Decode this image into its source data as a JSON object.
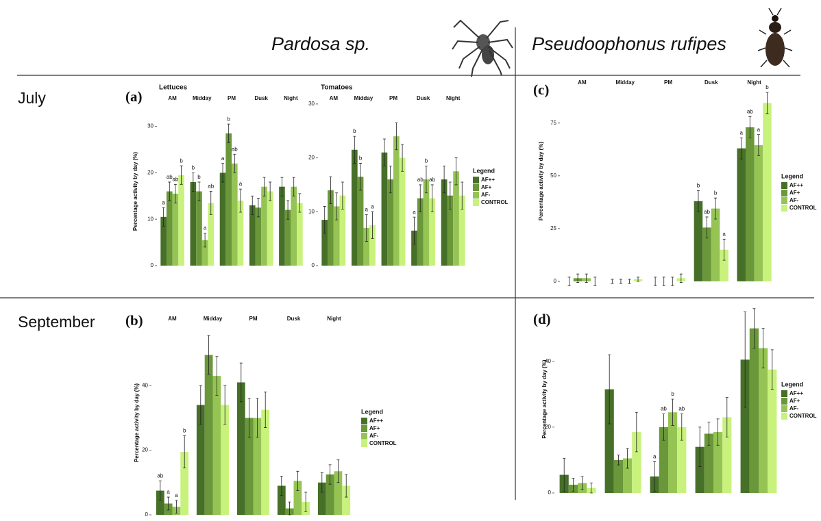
{
  "header": {
    "left_title": "Pardosa sp.",
    "right_title": "Pseudoophonus rufipes",
    "rows": [
      "July",
      "September"
    ]
  },
  "chart_data": [
    {
      "type": "bar",
      "panel": "(a)",
      "subtitle": "Lettuces",
      "ylabel": "Percentage activity by day (%)",
      "categories": [
        "AM",
        "Midday",
        "PM",
        "Dusk",
        "Night"
      ],
      "ylim": [
        0,
        32
      ],
      "yticks": [
        0,
        10,
        20,
        30
      ],
      "legend": false,
      "series": [
        {
          "name": "AF++",
          "color": "#466f28",
          "values": [
            10.5,
            18,
            20,
            13,
            17
          ],
          "errors": [
            2,
            2,
            2,
            2,
            2
          ],
          "annotations": [
            "a",
            "b",
            "a",
            null,
            null
          ]
        },
        {
          "name": "AF+",
          "color": "#6a973a",
          "values": [
            16,
            16,
            28.5,
            12.5,
            12
          ],
          "errors": [
            2,
            2,
            2,
            2,
            2
          ],
          "annotations": [
            "ab",
            "b",
            "b",
            null,
            null
          ]
        },
        {
          "name": "AF-",
          "color": "#95c455",
          "values": [
            15.5,
            5.5,
            22,
            17,
            17
          ],
          "errors": [
            2,
            1.5,
            2,
            2,
            2
          ],
          "annotations": [
            "ab",
            "a",
            "ab",
            null,
            null
          ]
        },
        {
          "name": "CONTROL",
          "color": "#c8f27c",
          "values": [
            19.5,
            13.5,
            14,
            16,
            13.5
          ],
          "errors": [
            2,
            2.5,
            2.5,
            2,
            2
          ],
          "annotations": [
            "b",
            "ab",
            "a",
            null,
            null
          ]
        }
      ]
    },
    {
      "type": "bar",
      "subtitle": "Tomatoes",
      "categories": [
        "AM",
        "Midday",
        "PM",
        "Dusk",
        "Night"
      ],
      "ylim": [
        0,
        31
      ],
      "yticks": [
        0,
        10,
        20,
        30
      ],
      "legend": true,
      "legend_title": "Legend",
      "series": [
        {
          "name": "AF++",
          "color": "#466f28",
          "values": [
            8.5,
            21.5,
            21,
            6.5,
            16
          ],
          "errors": [
            2.5,
            2.5,
            2.5,
            2.5,
            2.5
          ],
          "annotations": [
            null,
            "b",
            null,
            "a",
            null
          ]
        },
        {
          "name": "AF+",
          "color": "#6a973a",
          "values": [
            14,
            16.5,
            16,
            12.5,
            13
          ],
          "errors": [
            2.5,
            2.5,
            2.5,
            2.5,
            2.5
          ],
          "annotations": [
            null,
            "b",
            null,
            "ab",
            null
          ]
        },
        {
          "name": "AF-",
          "color": "#95c455",
          "values": [
            11,
            7,
            24,
            16,
            17.5
          ],
          "errors": [
            2.5,
            2.5,
            2.5,
            2.5,
            2.5
          ],
          "annotations": [
            null,
            "a",
            null,
            "b",
            null
          ]
        },
        {
          "name": "CONTROL",
          "color": "#c8f27c",
          "values": [
            13,
            7.5,
            20,
            12.5,
            13
          ],
          "errors": [
            2.5,
            2.5,
            2.5,
            2.5,
            2.5
          ],
          "annotations": [
            null,
            "a",
            null,
            "ab",
            null
          ]
        }
      ]
    },
    {
      "type": "bar",
      "panel": "(b)",
      "ylabel": "Percentage activity by day  (%)",
      "categories": [
        "AM",
        "Midday",
        "PM",
        "Dusk",
        "Night"
      ],
      "ylim": [
        0,
        57
      ],
      "yticks": [
        0,
        20,
        40
      ],
      "legend": true,
      "legend_title": "Legend",
      "series": [
        {
          "name": "AF++",
          "color": "#466f28",
          "values": [
            7.5,
            34,
            41,
            9,
            10
          ],
          "errors": [
            3,
            6,
            6,
            3,
            3
          ],
          "annotations": [
            "ab",
            null,
            null,
            null,
            null
          ]
        },
        {
          "name": "AF+",
          "color": "#6a973a",
          "values": [
            3.5,
            49.5,
            30,
            2,
            12.5
          ],
          "errors": [
            2,
            6,
            6,
            2,
            3
          ],
          "annotations": [
            "a",
            null,
            null,
            null,
            null
          ]
        },
        {
          "name": "AF-",
          "color": "#95c455",
          "values": [
            2.5,
            43,
            30,
            10.5,
            13.5
          ],
          "errors": [
            2,
            6,
            6,
            3,
            3.5
          ],
          "annotations": [
            "a",
            null,
            null,
            null,
            null
          ]
        },
        {
          "name": "CONTROL",
          "color": "#c8f27c",
          "values": [
            19.5,
            34,
            32.5,
            4,
            9
          ],
          "errors": [
            5,
            6,
            5.5,
            3,
            3.5
          ],
          "annotations": [
            "b",
            null,
            null,
            null,
            null
          ]
        }
      ]
    },
    {
      "type": "bar",
      "panel": "(c)",
      "ylabel": "Percentage activity by day  (%)",
      "categories": [
        "AM",
        "Midday",
        "PM",
        "Dusk",
        "Night"
      ],
      "ylim": [
        0,
        95
      ],
      "yticks": [
        0,
        25,
        50,
        75
      ],
      "legend": true,
      "legend_title": "Legend",
      "series": [
        {
          "name": "AF++",
          "color": "#466f28",
          "values": [
            0,
            0,
            0,
            38,
            63
          ],
          "errors": [
            2,
            1,
            2,
            5,
            5
          ],
          "annotations": [
            null,
            null,
            null,
            "b",
            "a"
          ]
        },
        {
          "name": "AF+",
          "color": "#6a973a",
          "values": [
            1.5,
            0,
            0,
            25.5,
            73
          ],
          "errors": [
            2,
            1,
            2,
            5,
            5
          ],
          "annotations": [
            null,
            null,
            null,
            "ab",
            "ab"
          ]
        },
        {
          "name": "AF-",
          "color": "#95c455",
          "values": [
            1.5,
            0,
            0,
            34.5,
            64.5
          ],
          "errors": [
            2,
            1,
            2,
            5,
            5
          ],
          "annotations": [
            null,
            null,
            null,
            "b",
            "a"
          ]
        },
        {
          "name": "CONTROL",
          "color": "#c8f27c",
          "values": [
            0,
            1,
            1.5,
            15,
            84.5
          ],
          "errors": [
            2,
            1,
            2,
            5,
            5
          ],
          "annotations": [
            null,
            null,
            null,
            "a",
            "b"
          ]
        }
      ]
    },
    {
      "type": "bar",
      "panel": "(d)",
      "ylabel": "Percentage activity by day  (%)",
      "categories": [
        null,
        null,
        null,
        null,
        null
      ],
      "ylim": [
        0,
        57
      ],
      "yticks": [
        0,
        20,
        40
      ],
      "legend": true,
      "legend_title": "Legend",
      "series": [
        {
          "name": "AF++",
          "color": "#466f28",
          "values": [
            5.5,
            31.5,
            5,
            14,
            40.5
          ],
          "errors": [
            5,
            10.5,
            4.5,
            6,
            14.5
          ],
          "annotations": [
            null,
            null,
            "a",
            null,
            null
          ]
        },
        {
          "name": "AF+",
          "color": "#6a973a",
          "values": [
            2.5,
            10,
            20,
            18,
            50
          ],
          "errors": [
            2,
            1.5,
            4,
            3.5,
            6
          ],
          "annotations": [
            null,
            null,
            "ab",
            null,
            null
          ]
        },
        {
          "name": "AF-",
          "color": "#95c455",
          "values": [
            3,
            10.5,
            24.5,
            18.5,
            44
          ],
          "errors": [
            2,
            3,
            4,
            4,
            6
          ],
          "annotations": [
            null,
            null,
            "b",
            null,
            null
          ]
        },
        {
          "name": "CONTROL",
          "color": "#c8f27c",
          "values": [
            1.5,
            18.5,
            20,
            23,
            37.5
          ],
          "errors": [
            1.5,
            6,
            4,
            6,
            6
          ],
          "annotations": [
            null,
            null,
            "ab",
            null,
            null
          ]
        }
      ]
    }
  ]
}
